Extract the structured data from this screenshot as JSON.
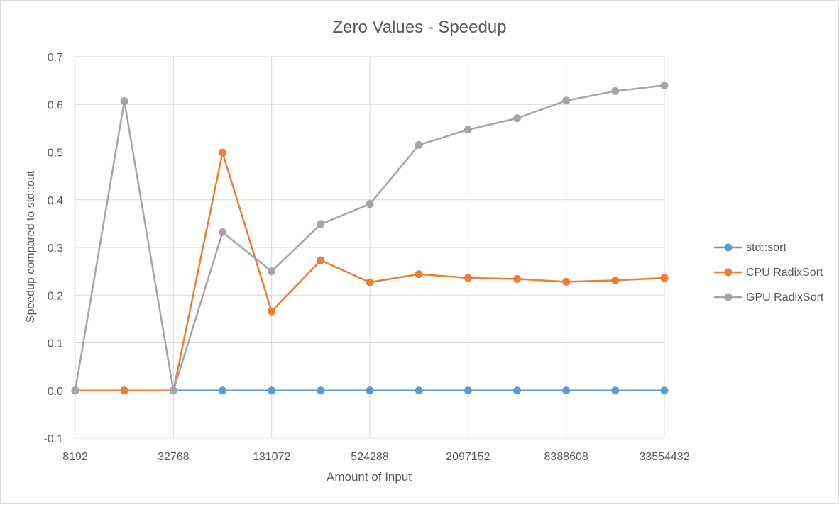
{
  "chart_data": {
    "type": "line",
    "title": "Zero Values - Speedup",
    "xlabel": "Amount of Input",
    "ylabel": "Speedup compared to std::out",
    "x_tick_labels": [
      "8192",
      "32768",
      "131072",
      "524288",
      "2097152",
      "8388608",
      "33554432"
    ],
    "x": [
      8192,
      16384,
      32768,
      65536,
      131072,
      262144,
      524288,
      1048576,
      2097152,
      4194304,
      8388608,
      16777216,
      33554432
    ],
    "y_ticks": [
      -0.1,
      0.0,
      0.1,
      0.2,
      0.3,
      0.4,
      0.5,
      0.6,
      0.7
    ],
    "ylim": [
      -0.1,
      0.7
    ],
    "grid": true,
    "legend_position": "right",
    "series": [
      {
        "name": "std::sort",
        "color": "#5b9bd5",
        "values": [
          0,
          0,
          0,
          0,
          0,
          0,
          0,
          0,
          0,
          0,
          0,
          0,
          0
        ]
      },
      {
        "name": "CPU RadixSort",
        "color": "#ed7d31",
        "values": [
          0,
          0,
          0,
          0.499,
          0.166,
          0.273,
          0.227,
          0.244,
          0.236,
          0.234,
          0.228,
          0.231,
          0.236
        ]
      },
      {
        "name": "GPU RadixSort",
        "color": "#a5a5a5",
        "values": [
          0,
          0.607,
          0,
          0.332,
          0.25,
          0.349,
          0.391,
          0.515,
          0.547,
          0.571,
          0.608,
          0.628,
          0.64
        ]
      }
    ]
  }
}
